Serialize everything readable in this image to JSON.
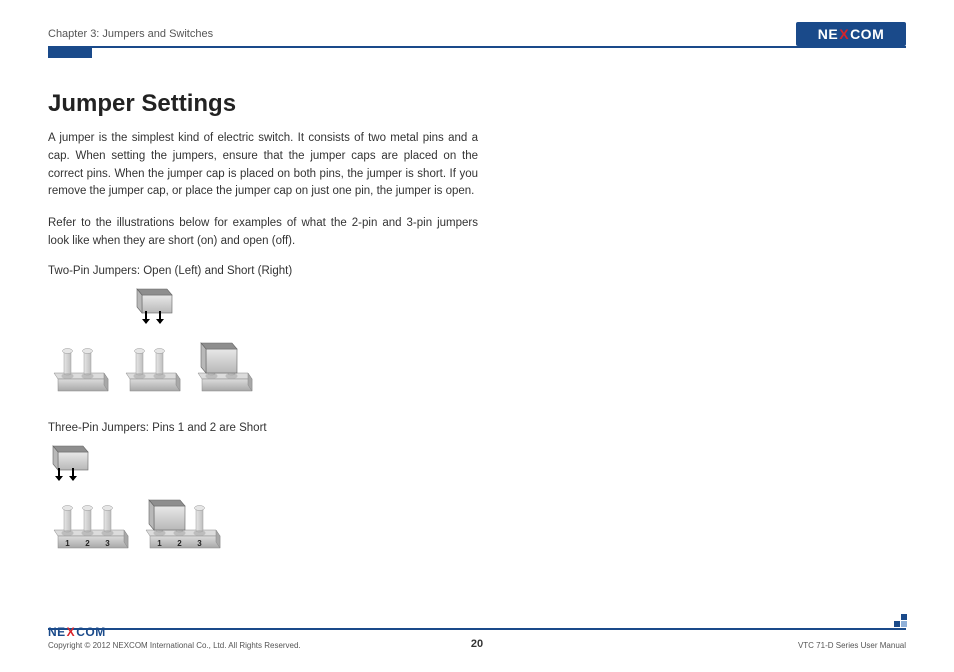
{
  "header": {
    "chapter": "Chapter 3: Jumpers and Switches",
    "logo_text_pre": "NE",
    "logo_text_x": "X",
    "logo_text_post": "COM"
  },
  "colors": {
    "brand_blue": "#1a4a8a",
    "brand_red": "#d8232a",
    "rule": "#1a4a8a",
    "text": "#333333",
    "cap_top": "#8e8e8e",
    "cap_side": "#b8b8b8",
    "cap_highlight": "#e8e8e8",
    "pin_light": "#e6e6e6",
    "pin_dark": "#bfbfbf",
    "base_light": "#dcdcdc",
    "base_dark": "#a8a8a8"
  },
  "content": {
    "title": "Jumper Settings",
    "para1": "A jumper is the simplest kind of electric switch. It consists of two metal pins and a cap. When setting the jumpers, ensure that the jumper caps are placed on the correct pins. When the jumper cap is placed on both pins, the jumper is short. If you remove the jumper cap, or place the jumper cap on just one pin, the jumper is open.",
    "para2": "Refer to the illustrations below for examples of what the 2-pin and 3-pin jumpers look like when they are short (on) and open (off).",
    "caption_two_pin": "Two-Pin Jumpers: Open (Left) and Short (Right)",
    "caption_three_pin": "Three-Pin Jumpers: Pins 1 and 2 are Short"
  },
  "illustrations": {
    "two_pin": [
      {
        "pins": 2,
        "cap": "none"
      },
      {
        "pins": 2,
        "cap": "above"
      },
      {
        "pins": 2,
        "cap": "on"
      }
    ],
    "three_pin": [
      {
        "pins": 3,
        "cap": "above_left",
        "labels": [
          "1",
          "2",
          "3"
        ]
      },
      {
        "pins": 3,
        "cap": "on_left",
        "labels": [
          "1",
          "2",
          "3"
        ]
      }
    ]
  },
  "footer": {
    "copyright": "Copyright © 2012 NEXCOM International Co., Ltd. All Rights Reserved.",
    "page_number": "20",
    "manual": "VTC 71-D Series User Manual"
  }
}
